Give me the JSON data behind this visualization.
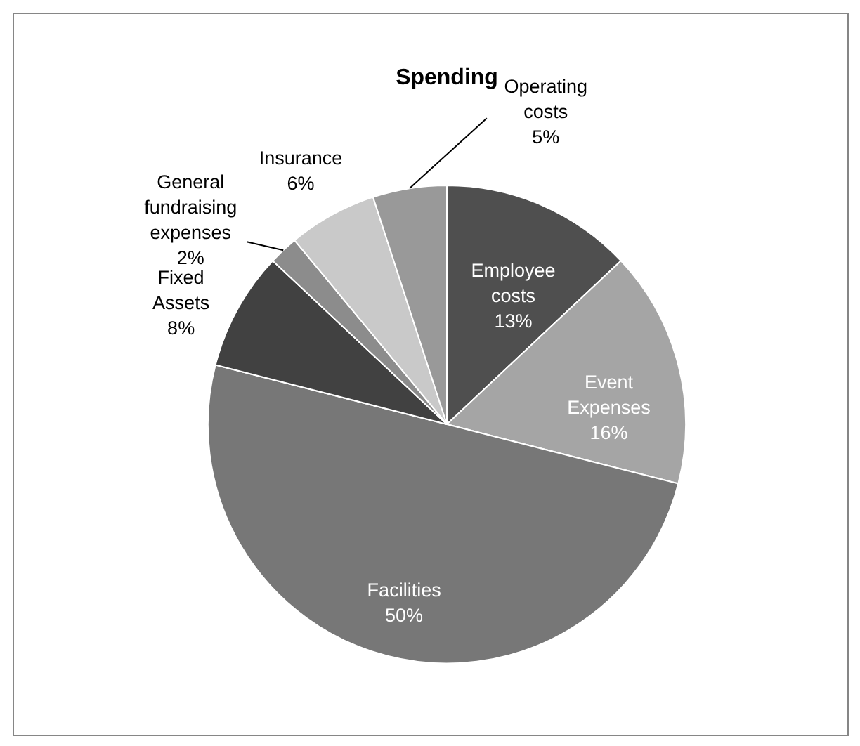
{
  "chart_data": {
    "type": "pie",
    "title": "Spending",
    "categories": [
      "Employee costs",
      "Event Expenses",
      "Facilities",
      "Fixed Assets",
      "General fundraising expenses",
      "Insurance",
      "Operating costs"
    ],
    "values": [
      13,
      16,
      50,
      8,
      2,
      6,
      5
    ],
    "value_labels": [
      "13%",
      "16%",
      "50%",
      "8%",
      "2%",
      "6%",
      "5%"
    ],
    "colors": [
      "#4f4f4f",
      "#a5a5a5",
      "#777777",
      "#414141",
      "#8c8c8c",
      "#c9c9c9",
      "#999999"
    ]
  }
}
